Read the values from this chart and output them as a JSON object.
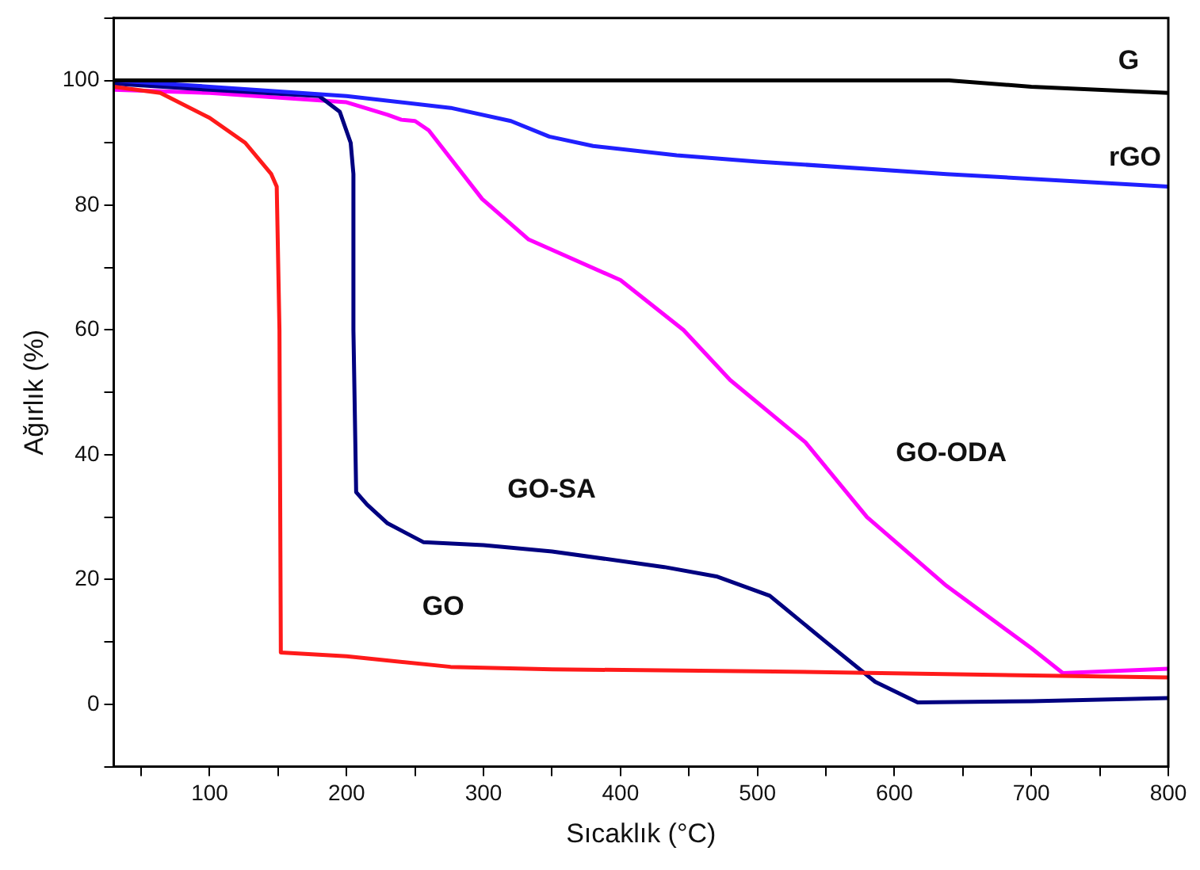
{
  "chart_data": {
    "type": "line",
    "xlabel": "Sıcaklık (°C)",
    "ylabel": "Ağırlık (%)",
    "xlim": [
      30,
      800
    ],
    "xticks": [
      {
        "value": 50,
        "label": null
      },
      100,
      {
        "value": 150,
        "label": null
      },
      200,
      {
        "value": 250,
        "label": null
      },
      300,
      {
        "value": 350,
        "label": null
      },
      400,
      {
        "value": 450,
        "label": null
      },
      500,
      {
        "value": 550,
        "label": null
      },
      600,
      {
        "value": 650,
        "label": null
      },
      700,
      {
        "value": 750,
        "label": null
      },
      800
    ],
    "ylim": [
      -10,
      110
    ],
    "yticks": [
      {
        "value": -10,
        "label": null
      },
      0,
      {
        "value": 10,
        "label": null
      },
      20,
      {
        "value": 30,
        "label": null
      },
      40,
      {
        "value": 50,
        "label": null
      },
      60,
      {
        "value": 70,
        "label": null
      },
      80,
      {
        "value": 90,
        "label": null
      },
      100,
      {
        "value": 110,
        "label": null
      }
    ],
    "grid": false,
    "legend": false,
    "marker": "none",
    "line_style": "solid",
    "series": [
      {
        "name": "G",
        "color": "#000000",
        "x": [
          30,
          200,
          400,
          640,
          700,
          800
        ],
        "values": [
          100,
          100,
          100,
          100,
          99,
          98
        ]
      },
      {
        "name": "rGO",
        "color": "#2020ff",
        "x": [
          30,
          100,
          200,
          276,
          320,
          348,
          380,
          441,
          500,
          638,
          800
        ],
        "values": [
          100,
          99,
          97.5,
          95.6,
          93.5,
          91,
          89.5,
          88,
          87,
          85,
          83
        ]
      },
      {
        "name": "GO",
        "color": "#ff1a1a",
        "x": [
          30,
          64,
          100,
          126,
          145,
          149,
          151,
          152,
          200,
          276,
          350,
          500,
          800
        ],
        "values": [
          99,
          98,
          94,
          90,
          85,
          83,
          60,
          8.3,
          7.7,
          6,
          5.6,
          5.3,
          4.3
        ]
      },
      {
        "name": "GO-SA",
        "color": "#000080",
        "x": [
          30,
          100,
          180,
          195,
          203,
          205,
          205,
          207,
          215,
          230,
          256,
          300,
          350,
          432,
          470,
          509,
          550,
          586,
          617,
          700,
          800
        ],
        "values": [
          99.5,
          98.5,
          97.5,
          95,
          90,
          85,
          60,
          34,
          32,
          29,
          26,
          25.5,
          24.5,
          22,
          20.5,
          17.4,
          10,
          3.6,
          0.3,
          0.5,
          1
        ]
      },
      {
        "name": "GO-ODA",
        "color": "#ff00ff",
        "x": [
          30,
          100,
          200,
          230,
          240,
          250,
          260,
          299,
          333,
          400,
          446,
          480,
          535,
          580,
          638,
          700,
          723,
          800
        ],
        "values": [
          98.5,
          98,
          96.5,
          94.5,
          93.7,
          93.5,
          92,
          81,
          74.5,
          68,
          60,
          52,
          42,
          30,
          19,
          9,
          5,
          5.7
        ]
      }
    ]
  }
}
